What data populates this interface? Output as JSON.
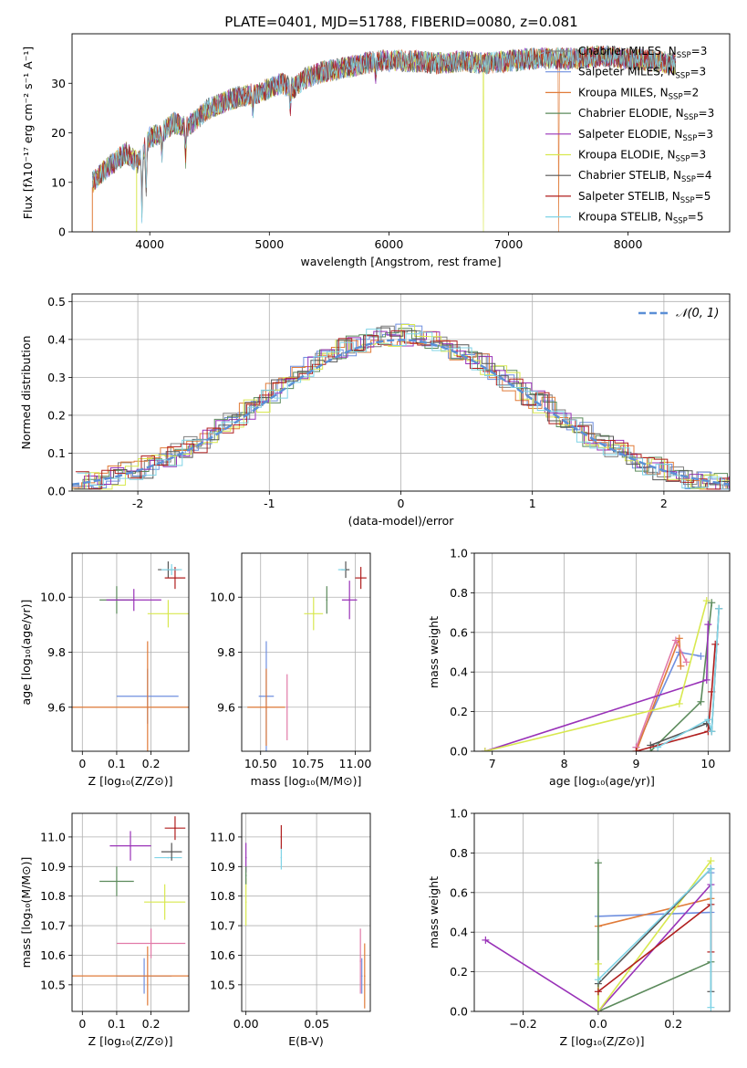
{
  "figure_title": "PLATE=0401, MJD=51788, FIBERID=0080, z=0.081",
  "colors": {
    "C-MILES": "#7f7f7f",
    "S-MILES": "#6f8fdf",
    "K-MILES": "#e07b39",
    "C-ELODIE": "#5b8a5b",
    "S-ELODIE": "#9932b8",
    "K-ELODIE": "#d8e84f",
    "C-STELIB": "#555555",
    "S-STELIB": "#b01e1e",
    "K-STELIB": "#7fd3e6",
    "gauss": "#5b8fd6",
    "pink": "#e17aa8"
  },
  "chart_data": [
    {
      "id": "spectrum",
      "type": "line",
      "title": "PLATE=0401, MJD=51788, FIBERID=0080, z=0.081",
      "xlabel": "wavelength [Angstrom, rest frame]",
      "ylabel": "Flux [fλ10⁻¹⁷ erg cm⁻² s⁻¹ A⁻¹]",
      "xlim": [
        3350,
        8850
      ],
      "ylim": [
        0,
        40
      ],
      "xticks": [
        4000,
        5000,
        6000,
        7000,
        8000
      ],
      "yticks": [
        0,
        10,
        20,
        30
      ],
      "legend_position": "right",
      "series": [
        {
          "name": "Chabrier MILES, N_SSP=3",
          "key": "C-MILES"
        },
        {
          "name": "Salpeter MILES, N_SSP=3",
          "key": "S-MILES"
        },
        {
          "name": "Kroupa MILES, N_SSP=2",
          "key": "K-MILES"
        },
        {
          "name": "Chabrier ELODIE, N_SSP=3",
          "key": "C-ELODIE"
        },
        {
          "name": "Salpeter ELODIE, N_SSP=3",
          "key": "S-ELODIE"
        },
        {
          "name": "Kroupa ELODIE, N_SSP=3",
          "key": "K-ELODIE"
        },
        {
          "name": "Chabrier STELIB, N_SSP=4",
          "key": "C-STELIB"
        },
        {
          "name": "Salpeter STELIB, N_SSP=5",
          "key": "S-STELIB"
        },
        {
          "name": "Kroupa STELIB, N_SSP=5",
          "key": "K-STELIB"
        }
      ],
      "envelope": {
        "x": [
          3520,
          3600,
          3700,
          3800,
          3900,
          4000,
          4100,
          4200,
          4300,
          4400,
          4500,
          4600,
          4700,
          4800,
          4900,
          5000,
          5100,
          5200,
          5300,
          5400,
          5500,
          5600,
          5700,
          5800,
          5900,
          6000,
          6200,
          6400,
          6600,
          6800,
          7000,
          7200,
          7400,
          7600,
          7800,
          8000,
          8200,
          8400
        ],
        "y": [
          10,
          12,
          14,
          16,
          14,
          19,
          20,
          22,
          21,
          23,
          25,
          26,
          27,
          27.5,
          28,
          29,
          30,
          29,
          31,
          32,
          32.5,
          33,
          33.5,
          34,
          34.5,
          34.5,
          34.5,
          34,
          34.5,
          34,
          34.5,
          35,
          35,
          35,
          35.5,
          35,
          34.5,
          34
        ]
      },
      "features": [
        {
          "x": 3934,
          "depth": 12
        },
        {
          "x": 3969,
          "depth": 10
        },
        {
          "x": 4102,
          "depth": 4
        },
        {
          "x": 4300,
          "depth": 6
        },
        {
          "x": 4861,
          "depth": 4
        },
        {
          "x": 5175,
          "depth": 5
        },
        {
          "x": 5890,
          "depth": 3
        }
      ],
      "drops": [
        {
          "x": 6790,
          "series": "K-ELODIE"
        },
        {
          "x": 7420,
          "series": "K-MILES"
        }
      ]
    },
    {
      "id": "residuals",
      "type": "line",
      "xlabel": "(data-model)/error",
      "ylabel": "Normed distribution",
      "xlim": [
        -2.5,
        2.5
      ],
      "ylim": [
        0,
        0.52
      ],
      "xticks": [
        -2,
        -1,
        0,
        1,
        2
      ],
      "yticks": [
        0.0,
        0.1,
        0.2,
        0.3,
        0.4,
        0.5
      ],
      "legend": {
        "label": "𝒩(0, 1)",
        "position": "top-right"
      },
      "bin_width": 0.1
    },
    {
      "id": "age_vs_Z",
      "type": "scatter",
      "xlabel": "Z [log₁₀(Z/Z⊙)]",
      "ylabel": "age  [log₁₀(age/yr)]",
      "xlim": [
        -0.03,
        0.31
      ],
      "ylim": [
        9.44,
        10.16
      ],
      "xticks": [
        0.0,
        0.1,
        0.2
      ],
      "yticks": [
        9.6,
        9.8,
        10.0
      ],
      "points": [
        {
          "key": "S-MILES",
          "x": 0.19,
          "y": 9.64,
          "xerr": 0.09,
          "yerr": 0.1
        },
        {
          "key": "K-MILES",
          "x": 0.19,
          "y": 9.6,
          "xerr": 0.3,
          "yerr": 0.24
        },
        {
          "key": "C-ELODIE",
          "x": 0.1,
          "y": 9.99,
          "xerr": 0.05,
          "yerr": 0.05
        },
        {
          "key": "S-ELODIE",
          "x": 0.15,
          "y": 9.99,
          "xerr": 0.08,
          "yerr": 0.04
        },
        {
          "key": "K-ELODIE",
          "x": 0.25,
          "y": 9.94,
          "xerr": 0.06,
          "yerr": 0.05
        },
        {
          "key": "C-STELIB",
          "x": 0.25,
          "y": 10.1,
          "xerr": 0.03,
          "yerr": 0.03
        },
        {
          "key": "S-STELIB",
          "x": 0.27,
          "y": 10.07,
          "xerr": 0.03,
          "yerr": 0.04
        },
        {
          "key": "K-STELIB",
          "x": 0.26,
          "y": 10.1,
          "xerr": 0.03,
          "yerr": 0.02
        }
      ]
    },
    {
      "id": "age_vs_mass",
      "type": "scatter",
      "xlabel": "mass [log₁₀(M/M⊙)]",
      "ylabel": "",
      "xlim": [
        10.4,
        11.08
      ],
      "ylim": [
        9.44,
        10.16
      ],
      "xticks": [
        10.5,
        10.75,
        11.0
      ],
      "xticklabels": [
        "10.50",
        "10.75",
        "11.00"
      ],
      "yticks": [
        9.6,
        9.8,
        10.0
      ],
      "points": [
        {
          "key": "S-MILES",
          "x": 10.53,
          "y": 9.64,
          "xerr": 0.04,
          "yerr": 0.2
        },
        {
          "key": "K-MILES",
          "x": 10.53,
          "y": 9.6,
          "xerr": 0.1,
          "yerr": 0.14
        },
        {
          "key": "pink",
          "x": 10.64,
          "y": 9.6,
          "xerr": 0.0,
          "yerr": 0.12
        },
        {
          "key": "K-ELODIE",
          "x": 10.78,
          "y": 9.94,
          "xerr": 0.05,
          "yerr": 0.06
        },
        {
          "key": "C-ELODIE",
          "x": 10.85,
          "y": 9.99,
          "xerr": 0.0,
          "yerr": 0.05
        },
        {
          "key": "S-ELODIE",
          "x": 10.97,
          "y": 9.99,
          "xerr": 0.04,
          "yerr": 0.07
        },
        {
          "key": "C-STELIB",
          "x": 10.95,
          "y": 10.1,
          "xerr": 0.02,
          "yerr": 0.03
        },
        {
          "key": "K-STELIB",
          "x": 10.93,
          "y": 10.1,
          "xerr": 0.02,
          "yerr": 0.0
        },
        {
          "key": "S-STELIB",
          "x": 11.03,
          "y": 10.07,
          "xerr": 0.03,
          "yerr": 0.04
        }
      ]
    },
    {
      "id": "weight_vs_age",
      "type": "line",
      "xlabel": "age  [log₁₀(age/yr)]",
      "ylabel": "mass weight",
      "xlim": [
        6.75,
        10.3
      ],
      "ylim": [
        0,
        1.0
      ],
      "xticks": [
        7,
        8,
        9,
        10
      ],
      "yticks": [
        0.0,
        0.2,
        0.4,
        0.6,
        0.8,
        1.0
      ],
      "series": [
        {
          "key": "S-MILES",
          "x": [
            9.0,
            9.6,
            9.9
          ],
          "y": [
            0.02,
            0.5,
            0.48
          ]
        },
        {
          "key": "K-MILES",
          "x": [
            9.0,
            9.6,
            9.62
          ],
          "y": [
            0.0,
            0.57,
            0.43
          ]
        },
        {
          "key": "pink",
          "x": [
            9.0,
            9.55,
            9.7
          ],
          "y": [
            0.02,
            0.56,
            0.45
          ]
        },
        {
          "key": "C-ELODIE",
          "x": [
            9.2,
            9.9,
            10.05
          ],
          "y": [
            0.0,
            0.25,
            0.75
          ]
        },
        {
          "key": "S-ELODIE",
          "x": [
            6.9,
            9.98,
            10.0
          ],
          "y": [
            0.0,
            0.36,
            0.64
          ]
        },
        {
          "key": "K-ELODIE",
          "x": [
            6.9,
            9.6,
            9.98
          ],
          "y": [
            0.0,
            0.24,
            0.76
          ]
        },
        {
          "key": "C-STELIB",
          "x": [
            9.2,
            9.98,
            10.05,
            10.15
          ],
          "y": [
            0.03,
            0.14,
            0.1,
            0.72
          ]
        },
        {
          "key": "S-STELIB",
          "x": [
            9.0,
            10.0,
            10.05,
            10.1
          ],
          "y": [
            0.0,
            0.1,
            0.3,
            0.54
          ]
        },
        {
          "key": "K-STELIB",
          "x": [
            9.3,
            10.0,
            10.05,
            10.15
          ],
          "y": [
            0.02,
            0.16,
            0.1,
            0.72
          ]
        }
      ]
    },
    {
      "id": "mass_vs_Z",
      "type": "scatter",
      "xlabel": "Z [log₁₀(Z/Z⊙)]",
      "ylabel": "mass [log₁₀(M/M⊙)]",
      "xlim": [
        -0.03,
        0.31
      ],
      "ylim": [
        10.41,
        11.08
      ],
      "xticks": [
        0.0,
        0.1,
        0.2
      ],
      "yticks": [
        10.5,
        10.6,
        10.7,
        10.8,
        10.9,
        11.0
      ],
      "points": [
        {
          "key": "S-MILES",
          "x": 0.18,
          "y": 10.53,
          "xerr": 0.08,
          "yerr": 0.06
        },
        {
          "key": "K-MILES",
          "x": 0.19,
          "y": 10.53,
          "xerr": 0.3,
          "yerr": 0.1
        },
        {
          "key": "pink",
          "x": 0.2,
          "y": 10.64,
          "xerr": 0.1,
          "yerr": 0.05
        },
        {
          "key": "K-ELODIE",
          "x": 0.24,
          "y": 10.78,
          "xerr": 0.06,
          "yerr": 0.06
        },
        {
          "key": "C-ELODIE",
          "x": 0.1,
          "y": 10.85,
          "xerr": 0.05,
          "yerr": 0.05
        },
        {
          "key": "S-ELODIE",
          "x": 0.14,
          "y": 10.97,
          "xerr": 0.06,
          "yerr": 0.05
        },
        {
          "key": "K-STELIB",
          "x": 0.25,
          "y": 10.93,
          "xerr": 0.04,
          "yerr": 0.0
        },
        {
          "key": "C-STELIB",
          "x": 0.26,
          "y": 10.95,
          "xerr": 0.03,
          "yerr": 0.03
        },
        {
          "key": "S-STELIB",
          "x": 0.27,
          "y": 11.03,
          "xerr": 0.03,
          "yerr": 0.04
        }
      ]
    },
    {
      "id": "mass_vs_ebv",
      "type": "scatter",
      "xlabel": "E(B-V)",
      "ylabel": "",
      "xlim": [
        -0.003,
        0.088
      ],
      "ylim": [
        10.41,
        11.08
      ],
      "xticks": [
        0.0,
        0.05
      ],
      "xticklabels": [
        "0.00",
        "0.05"
      ],
      "yticks": [
        10.5,
        10.6,
        10.7,
        10.8,
        10.9,
        11.0
      ],
      "points": [
        {
          "key": "K-ELODIE",
          "x": 0.0,
          "y": 10.78,
          "xerr": 0.0,
          "yerr": 0.08
        },
        {
          "key": "S-ELODIE",
          "x": 0.0,
          "y": 10.93,
          "xerr": 0.0,
          "yerr": 0.05
        },
        {
          "key": "C-ELODIE",
          "x": 0.0,
          "y": 10.87,
          "xerr": 0.0,
          "yerr": 0.03
        },
        {
          "key": "K-STELIB",
          "x": 0.025,
          "y": 10.93,
          "xerr": 0.0,
          "yerr": 0.04
        },
        {
          "key": "S-STELIB",
          "x": 0.025,
          "y": 11.0,
          "xerr": 0.0,
          "yerr": 0.04
        },
        {
          "key": "S-MILES",
          "x": 0.082,
          "y": 10.53,
          "xerr": 0.0,
          "yerr": 0.06
        },
        {
          "key": "pink",
          "x": 0.081,
          "y": 10.58,
          "xerr": 0.0,
          "yerr": 0.11
        },
        {
          "key": "K-MILES",
          "x": 0.084,
          "y": 10.53,
          "xerr": 0.0,
          "yerr": 0.11
        }
      ]
    },
    {
      "id": "weight_vs_Z",
      "type": "line",
      "xlabel": "Z [log₁₀(Z/Z⊙)]",
      "ylabel": "mass weight",
      "xlim": [
        -0.33,
        0.35
      ],
      "ylim": [
        0,
        1.0
      ],
      "xticks": [
        -0.2,
        0.0,
        0.2
      ],
      "xticklabels": [
        "−0.2",
        "0.0",
        "0.2"
      ],
      "yticks": [
        0.0,
        0.2,
        0.4,
        0.6,
        0.8,
        1.0
      ],
      "series": [
        {
          "key": "S-MILES",
          "x": [
            0.0,
            0.3,
            0.3
          ],
          "y": [
            0.48,
            0.5,
            0.7
          ]
        },
        {
          "key": "K-MILES",
          "x": [
            0.0,
            0.3
          ],
          "y": [
            0.43,
            0.57
          ]
        },
        {
          "key": "C-ELODIE",
          "x": [
            0.0,
            0.0,
            0.3
          ],
          "y": [
            0.75,
            0.0,
            0.25
          ]
        },
        {
          "key": "S-ELODIE",
          "x": [
            -0.3,
            0.0,
            0.3
          ],
          "y": [
            0.36,
            0.0,
            0.64
          ]
        },
        {
          "key": "K-ELODIE",
          "x": [
            0.0,
            0.0,
            0.3
          ],
          "y": [
            0.24,
            0.0,
            0.76
          ]
        },
        {
          "key": "C-STELIB",
          "x": [
            0.0,
            0.3,
            0.3
          ],
          "y": [
            0.14,
            0.72,
            0.1
          ]
        },
        {
          "key": "S-STELIB",
          "x": [
            0.0,
            0.3,
            0.3
          ],
          "y": [
            0.1,
            0.54,
            0.3
          ]
        },
        {
          "key": "K-STELIB",
          "x": [
            0.0,
            0.3,
            0.3
          ],
          "y": [
            0.16,
            0.72,
            0.02
          ]
        }
      ]
    }
  ]
}
